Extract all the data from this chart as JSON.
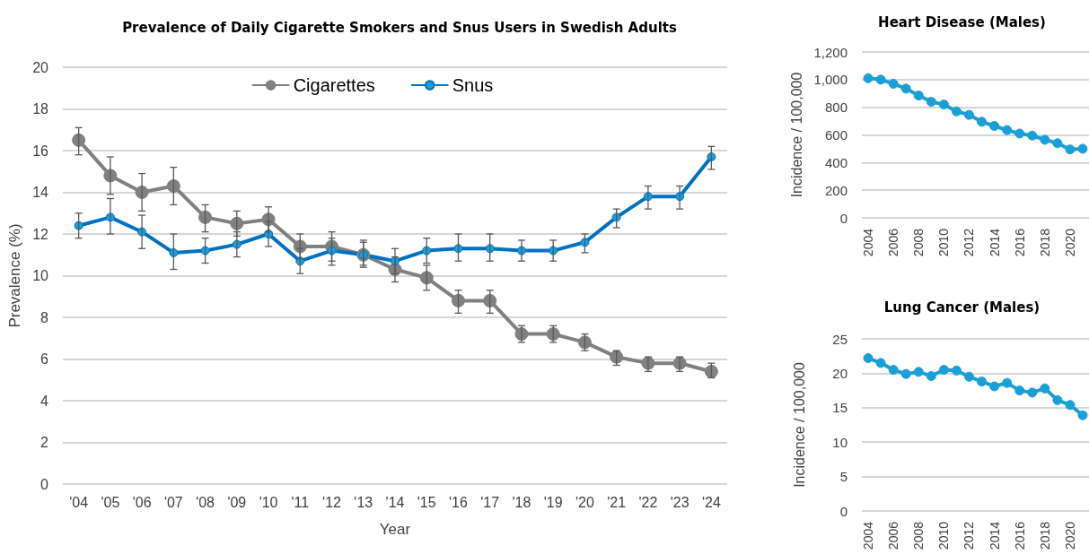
{
  "chart_data": [
    {
      "type": "line",
      "title": "Prevalence of Daily Cigarette Smokers and Snus Users in Swedish Adults",
      "xlabel": "Year",
      "ylabel": "Prevalence (%)",
      "categories": [
        "'04",
        "'05",
        "'06",
        "'07",
        "'08",
        "'09",
        "'10",
        "'11",
        "'12",
        "'13",
        "'14",
        "'15",
        "'16",
        "'17",
        "'18",
        "'19",
        "'20",
        "'21",
        "'22",
        "'23",
        "'24"
      ],
      "series": [
        {
          "name": "Cigarettes",
          "color": "#808080",
          "values": [
            16.5,
            14.8,
            14.0,
            14.3,
            12.8,
            12.5,
            12.7,
            11.4,
            11.4,
            11.0,
            10.3,
            9.9,
            8.8,
            8.8,
            7.2,
            7.2,
            6.8,
            6.1,
            5.8,
            5.8,
            5.4
          ],
          "errors": [
            [
              15.8,
              17.1
            ],
            [
              13.9,
              15.7
            ],
            [
              13.1,
              14.9
            ],
            [
              13.4,
              15.2
            ],
            [
              12.1,
              13.4
            ],
            [
              11.9,
              13.1
            ],
            [
              12.1,
              13.3
            ],
            [
              10.8,
              12.0
            ],
            [
              10.7,
              12.1
            ],
            [
              10.5,
              11.6
            ],
            [
              9.7,
              10.9
            ],
            [
              9.3,
              10.5
            ],
            [
              8.2,
              9.3
            ],
            [
              8.2,
              9.3
            ],
            [
              6.8,
              7.6
            ],
            [
              6.8,
              7.6
            ],
            [
              6.4,
              7.2
            ],
            [
              5.7,
              6.4
            ],
            [
              5.4,
              6.1
            ],
            [
              5.4,
              6.1
            ],
            [
              5.1,
              5.8
            ]
          ]
        },
        {
          "name": "Snus",
          "color": "#0070c0",
          "values": [
            12.4,
            12.8,
            12.1,
            11.1,
            11.2,
            11.5,
            12.0,
            10.7,
            11.2,
            11.0,
            10.7,
            11.2,
            11.3,
            11.3,
            11.2,
            11.2,
            11.6,
            12.8,
            13.8,
            13.8,
            15.7
          ],
          "errors": [
            [
              11.8,
              13.0
            ],
            [
              12.0,
              13.7
            ],
            [
              11.3,
              12.9
            ],
            [
              10.3,
              12.0
            ],
            [
              10.6,
              11.8
            ],
            [
              10.9,
              12.1
            ],
            [
              11.4,
              12.6
            ],
            [
              10.1,
              11.3
            ],
            [
              10.5,
              11.8
            ],
            [
              10.4,
              11.7
            ],
            [
              10.1,
              11.3
            ],
            [
              10.6,
              11.8
            ],
            [
              10.7,
              12.0
            ],
            [
              10.7,
              12.0
            ],
            [
              10.7,
              11.7
            ],
            [
              10.7,
              11.7
            ],
            [
              11.1,
              12.0
            ],
            [
              12.3,
              13.2
            ],
            [
              13.2,
              14.3
            ],
            [
              13.2,
              14.3
            ],
            [
              15.1,
              16.2
            ]
          ]
        }
      ],
      "ylim": [
        0,
        20
      ],
      "yticks": [
        0,
        2,
        4,
        6,
        8,
        10,
        12,
        14,
        16,
        18,
        20
      ],
      "grid": "y",
      "legend": "top",
      "marker": "circle",
      "line_style": "solid"
    },
    {
      "type": "line",
      "title": "Heart Disease (Males)",
      "ylabel": "Incidence / 100,000",
      "categories": [
        "2004",
        null,
        "2006",
        null,
        "2008",
        null,
        "2010",
        null,
        "2012",
        null,
        "2014",
        null,
        "2016",
        null,
        "2018",
        null,
        "2020",
        null
      ],
      "series": [
        {
          "color": "#1a9fd6",
          "values": [
            1010,
            1000,
            970,
            935,
            885,
            840,
            820,
            770,
            745,
            695,
            665,
            635,
            610,
            595,
            565,
            540,
            495,
            500
          ]
        }
      ],
      "ylim": [
        0,
        1200
      ],
      "yticks": [
        {
          "value": 0,
          "label": "0"
        },
        {
          "value": 200,
          "label": "200"
        },
        {
          "value": 400,
          "label": "400"
        },
        {
          "value": 600,
          "label": "600"
        },
        {
          "value": 800,
          "label": "800"
        },
        {
          "value": 1000,
          "label": "1,000"
        },
        {
          "value": 1200,
          "label": "1,200"
        }
      ],
      "grid": "y",
      "marker": "circle",
      "line_style": "solid"
    },
    {
      "type": "line",
      "title": "Lung Cancer (Males)",
      "ylabel": "Incidence / 100,000",
      "categories": [
        "2004",
        null,
        "2006",
        null,
        "2008",
        null,
        "2010",
        null,
        "2012",
        null,
        "2014",
        null,
        "2016",
        null,
        "2018",
        null,
        "2020",
        null
      ],
      "series": [
        {
          "color": "#1a9fd6",
          "values": [
            22.2,
            21.5,
            20.5,
            19.9,
            20.2,
            19.6,
            20.5,
            20.4,
            19.5,
            18.8,
            18.1,
            18.6,
            17.5,
            17.2,
            17.8,
            16.1,
            15.4,
            13.9
          ]
        }
      ],
      "ylim": [
        0,
        25
      ],
      "yticks": [
        0,
        5,
        10,
        15,
        20,
        25
      ],
      "grid": "y",
      "marker": "circle",
      "line_style": "solid"
    }
  ]
}
